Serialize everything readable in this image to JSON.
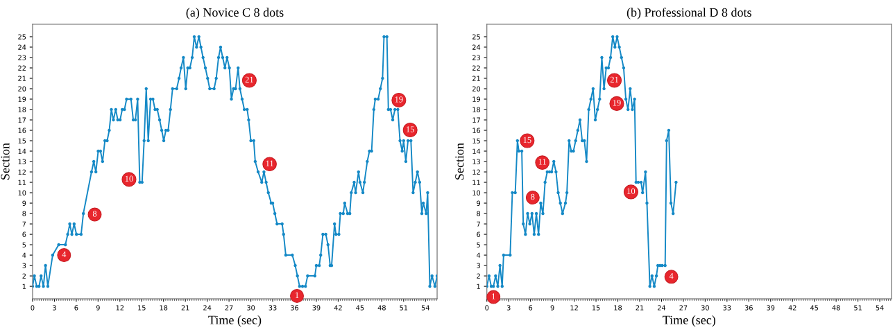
{
  "chart_data": [
    {
      "type": "line",
      "title": "(a) Novice C 8 dots",
      "xlabel": "Time (sec)",
      "ylabel": "Section",
      "marker": "circle",
      "line_style": "solid",
      "grid": false,
      "xlim": [
        0,
        55.6
      ],
      "ylim": [
        -0.2,
        26.2
      ],
      "xticks": [
        0,
        3,
        6,
        9,
        12,
        15,
        18,
        21,
        24,
        27,
        30,
        33,
        36,
        39,
        42,
        45,
        48,
        51,
        54
      ],
      "yticks": [
        1,
        2,
        3,
        4,
        5,
        6,
        7,
        8,
        9,
        10,
        11,
        12,
        13,
        14,
        15,
        16,
        17,
        18,
        19,
        20,
        21,
        22,
        23,
        24,
        25
      ],
      "series": [
        {
          "color": "#1589c6",
          "x": [
            0,
            0.25,
            0.57,
            0.89,
            1.17,
            1.49,
            1.78,
            2.1,
            2.76,
            3.59,
            4.51,
            4.83,
            5.11,
            5.4,
            5.71,
            6.03,
            6.67,
            6.98,
            8.1,
            8.41,
            8.7,
            9.02,
            9.33,
            9.62,
            9.94,
            10.25,
            10.54,
            10.83,
            11.11,
            11.43,
            11.71,
            12.03,
            12.32,
            12.63,
            12.92,
            13.52,
            13.84,
            14.13,
            14.44,
            14.73,
            15.05,
            15.33,
            15.62,
            15.9,
            16.22,
            16.54,
            16.83,
            17.14,
            17.46,
            17.75,
            18.03,
            18.32,
            18.63,
            18.95,
            19.24,
            19.81,
            20.13,
            20.41,
            20.73,
            21.05,
            21.33,
            21.62,
            21.94,
            22.22,
            22.54,
            22.86,
            23.14,
            23.43,
            23.75,
            24.06,
            24.35,
            24.95,
            25.24,
            25.56,
            25.84,
            26.13,
            26.44,
            26.73,
            27.05,
            27.33,
            27.62,
            27.9,
            28.25,
            28.5,
            28.8,
            29.1,
            29.5,
            29.7,
            30.0,
            30.4,
            30.6,
            31.0,
            31.5,
            31.8,
            32.1,
            32.4,
            32.8,
            33.0,
            33.3,
            33.6,
            34.3,
            34.5,
            34.8,
            35.7,
            36.1,
            36.4,
            36.7,
            37.1,
            37.5,
            37.8,
            38.8,
            39.0,
            39.4,
            39.6,
            39.9,
            40.3,
            40.6,
            40.9,
            41.1,
            41.5,
            41.7,
            42.1,
            42.3,
            42.7,
            42.9,
            43.3,
            43.6,
            43.8,
            44.2,
            44.4,
            44.8,
            45.0,
            45.4,
            45.6,
            46.0,
            46.3,
            46.6,
            46.9,
            47.1,
            47.5,
            47.8,
            48.1,
            48.3,
            48.7,
            48.9,
            49.2,
            49.5,
            49.8,
            50.2,
            50.5,
            50.8,
            51.0,
            51.3,
            51.6,
            52.0,
            52.3,
            52.6,
            52.9,
            53.2,
            53.5,
            53.7,
            54.1,
            54.3,
            54.6,
            54.9,
            55.3,
            55.6
          ],
          "values": [
            1,
            2,
            1,
            1,
            2,
            1,
            3,
            1,
            4,
            5,
            5,
            6,
            7,
            6,
            7,
            6,
            6,
            8,
            12,
            13,
            12,
            14,
            14,
            13,
            15,
            15,
            16,
            18,
            17,
            18,
            17,
            17,
            18,
            18,
            19,
            19,
            17,
            17,
            19,
            11,
            11,
            15,
            20,
            15,
            19,
            19,
            18,
            18,
            17,
            16,
            15,
            16,
            16,
            18,
            20,
            20,
            21,
            22,
            23,
            20,
            22,
            22,
            23,
            25,
            24,
            25,
            24,
            23,
            22,
            21,
            20,
            20,
            21,
            23,
            24,
            23,
            22,
            23,
            22,
            19,
            20,
            20,
            22,
            20,
            19,
            18,
            18,
            17,
            15,
            15,
            13,
            12,
            11,
            12,
            11,
            10,
            9,
            9,
            8,
            7,
            7,
            6,
            4,
            4,
            3,
            2,
            1,
            1,
            1,
            2,
            2,
            3,
            3,
            4,
            6,
            6,
            5,
            3,
            3,
            7,
            6,
            6,
            8,
            8,
            9,
            8,
            8,
            10,
            11,
            10,
            12,
            11,
            10,
            11,
            13,
            14,
            14,
            18,
            19,
            19,
            20,
            21,
            25,
            25,
            18,
            18,
            17,
            18,
            18,
            15,
            14,
            15,
            13,
            15,
            15,
            10,
            11,
            12,
            11,
            8,
            9,
            8,
            10,
            1,
            2,
            1,
            2
          ]
        }
      ],
      "annotations": [
        {
          "text": "4",
          "x": 2.8,
          "y": 4.0
        },
        {
          "text": "8",
          "x": 7.3,
          "y": 7.9
        },
        {
          "text": "10",
          "x": 14.73,
          "y": 11
        },
        {
          "text": "21",
          "x": 27.6,
          "y": 20.8
        },
        {
          "text": "11",
          "x": 31.5,
          "y": 12.0
        },
        {
          "text": "1",
          "x": 37.1,
          "y": 1.0
        },
        {
          "text": "19",
          "x": 49.1,
          "y": 18.9
        },
        {
          "text": "15",
          "x": 51.5,
          "y": 15.0
        }
      ]
    },
    {
      "type": "line",
      "title": "(b) Professional D 8 dots",
      "xlabel": "Time (sec)",
      "ylabel": "Section",
      "marker": "circle",
      "line_style": "solid",
      "grid": false,
      "xlim": [
        0,
        55.6
      ],
      "ylim": [
        -0.2,
        26.2
      ],
      "xticks": [
        0,
        3,
        6,
        9,
        12,
        15,
        18,
        21,
        24,
        27,
        30,
        33,
        36,
        39,
        42,
        45,
        48,
        51,
        54
      ],
      "yticks": [
        1,
        2,
        3,
        4,
        5,
        6,
        7,
        8,
        9,
        10,
        11,
        12,
        13,
        14,
        15,
        16,
        17,
        18,
        19,
        20,
        21,
        22,
        23,
        24,
        25
      ],
      "series": [
        {
          "color": "#1589c6",
          "x": [
            0,
            0.3,
            0.6,
            0.9,
            1.2,
            1.5,
            1.8,
            2.1,
            2.3,
            3.2,
            3.5,
            3.9,
            4.2,
            4.4,
            4.8,
            5.0,
            5.3,
            5.6,
            5.9,
            6.2,
            6.5,
            6.8,
            7.1,
            7.4,
            7.7,
            8.0,
            8.3,
            8.6,
            8.9,
            9.2,
            9.5,
            9.8,
            10.1,
            10.4,
            10.8,
            11.0,
            11.3,
            11.6,
            11.9,
            12.2,
            12.5,
            12.8,
            13.1,
            13.4,
            13.7,
            14.0,
            14.3,
            14.6,
            14.9,
            15.2,
            15.5,
            15.8,
            16.1,
            16.4,
            16.7,
            17.0,
            17.3,
            17.6,
            17.9,
            18.2,
            18.5,
            18.8,
            19.1,
            19.4,
            19.7,
            20.0,
            20.3,
            20.5,
            20.8,
            21.2,
            21.4,
            21.8,
            22.0,
            22.4,
            22.7,
            23.0,
            23.3,
            23.5,
            23.8,
            24.1,
            24.5,
            24.7,
            25.0,
            25.3,
            25.6,
            26.0
          ],
          "values": [
            1,
            2,
            1,
            1,
            2,
            1,
            3,
            1,
            4,
            4,
            10,
            10,
            15,
            14,
            14,
            7,
            6,
            8,
            7,
            8,
            6,
            8,
            6,
            9,
            8,
            11,
            12,
            12,
            12,
            13,
            12,
            10,
            9,
            8,
            9,
            10,
            15,
            14,
            14,
            15,
            16,
            17,
            15,
            15,
            13,
            18,
            19,
            20,
            17,
            18,
            19,
            23,
            20,
            22,
            22,
            23,
            25,
            24,
            25,
            24,
            23,
            22,
            19,
            18,
            20,
            18,
            19,
            11,
            11,
            11,
            10,
            12,
            9,
            1,
            2,
            1,
            2,
            3,
            3,
            3,
            3,
            15,
            16,
            9,
            8,
            11
          ]
        }
      ],
      "annotations": [
        {
          "text": "1",
          "x": 1.3,
          "y": 1.0
        },
        {
          "text": "15",
          "x": 4.3,
          "y": 15.0
        },
        {
          "text": "8",
          "x": 6.3,
          "y": 8.0
        },
        {
          "text": "11",
          "x": 8.9,
          "y": 12
        },
        {
          "text": "21",
          "x": 16.0,
          "y": 20.8
        },
        {
          "text": "19",
          "x": 19.6,
          "y": 18.9
        },
        {
          "text": "10",
          "x": 21.0,
          "y": 10.3
        },
        {
          "text": "4",
          "x": 23.8,
          "y": 3
        }
      ]
    }
  ]
}
